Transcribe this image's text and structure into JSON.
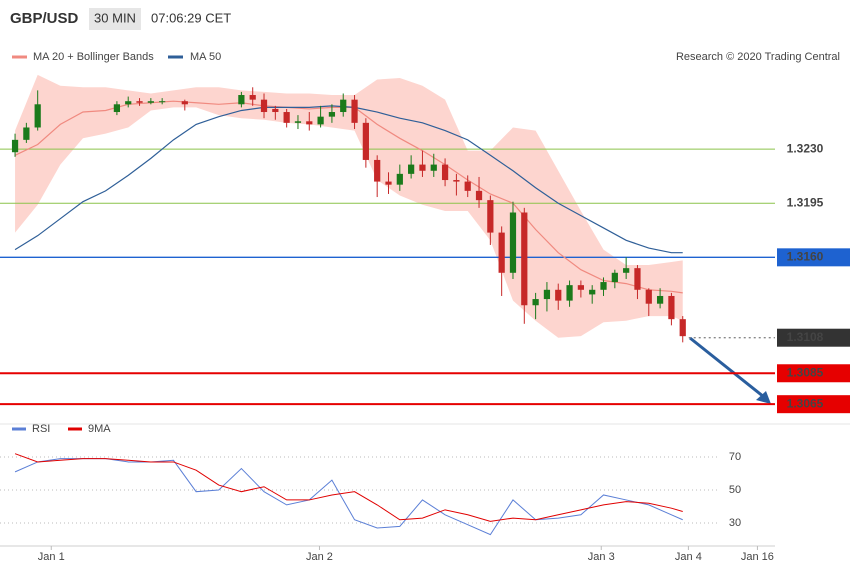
{
  "header": {
    "symbol": "GBP/USD",
    "interval": "30 MIN",
    "time": "07:06:29 CET"
  },
  "chart_data": [
    {
      "type": "candlestick",
      "annotation": "Research © 2020 Trading Central",
      "up_color": "#1b7a1b",
      "down_color": "#c62828",
      "xlim": [
        -1.33,
        66.8
      ],
      "ylim": [
        1.3058,
        1.332
      ],
      "open": [
        1.3228,
        1.3236,
        1.3244,
        null,
        null,
        null,
        null,
        null,
        null,
        1.3254,
        1.3259,
        1.3261,
        1.326,
        1.3261,
        null,
        1.3261,
        null,
        null,
        null,
        null,
        1.3259,
        1.3265,
        1.3262,
        1.3256,
        1.3254,
        1.3247,
        1.3248,
        1.3246,
        1.3251,
        1.3254,
        1.3262,
        1.3247,
        1.3223,
        1.3209,
        1.3207,
        1.3214,
        1.322,
        1.3216,
        1.322,
        1.321,
        1.3209,
        1.3203,
        1.3197,
        1.3176,
        1.315,
        1.3189,
        1.3129,
        1.3133,
        1.3139,
        1.3132,
        1.3142,
        1.3136,
        1.3139,
        1.3144,
        1.315,
        1.3153,
        1.3139,
        1.313,
        1.3135,
        1.312
      ],
      "high": [
        1.324,
        1.3247,
        1.3268,
        null,
        null,
        null,
        null,
        null,
        null,
        1.3261,
        1.3264,
        1.3263,
        1.3263,
        1.3263,
        null,
        1.3262,
        null,
        null,
        null,
        null,
        1.3267,
        1.327,
        1.3266,
        1.3258,
        1.3256,
        1.3252,
        1.3254,
        1.3258,
        1.3259,
        1.3266,
        1.3265,
        1.325,
        1.3226,
        1.3215,
        1.322,
        1.3226,
        1.3229,
        1.3227,
        1.3224,
        1.3214,
        1.3213,
        1.3212,
        1.32,
        1.318,
        1.3196,
        1.3192,
        1.3137,
        1.3144,
        1.3143,
        1.3145,
        1.3145,
        1.3142,
        1.3147,
        1.3152,
        1.316,
        1.3155,
        1.314,
        1.314,
        1.3137,
        1.3122
      ],
      "low": [
        1.3225,
        1.3234,
        1.3242,
        null,
        null,
        null,
        null,
        null,
        null,
        1.3252,
        1.3257,
        1.3258,
        1.3259,
        1.3259,
        null,
        1.3255,
        null,
        null,
        null,
        null,
        1.3257,
        1.3258,
        1.325,
        1.3249,
        1.3244,
        1.3243,
        1.3242,
        1.3244,
        1.3247,
        1.3251,
        1.3243,
        1.3218,
        1.3199,
        1.3201,
        1.3203,
        1.3211,
        1.3212,
        1.3212,
        1.3206,
        1.32,
        1.3199,
        1.3192,
        1.3168,
        1.3135,
        1.3146,
        1.3117,
        1.312,
        1.3125,
        1.3126,
        1.3128,
        1.3134,
        1.313,
        1.3135,
        1.314,
        1.3146,
        1.3133,
        1.3122,
        1.3127,
        1.3116,
        1.3105
      ],
      "close": [
        1.3236,
        1.3244,
        1.3259,
        null,
        null,
        null,
        null,
        null,
        null,
        1.3259,
        1.3261,
        1.326,
        1.3261,
        1.3261,
        null,
        1.3259,
        null,
        null,
        null,
        null,
        1.3265,
        1.3262,
        1.3254,
        1.3254,
        1.3247,
        1.3248,
        1.3246,
        1.3251,
        1.3254,
        1.3262,
        1.3247,
        1.3223,
        1.3209,
        1.3207,
        1.3214,
        1.322,
        1.3216,
        1.322,
        1.321,
        1.3209,
        1.3203,
        1.3197,
        1.3176,
        1.315,
        1.3189,
        1.3129,
        1.3133,
        1.3139,
        1.3132,
        1.3142,
        1.3139,
        1.3139,
        1.3144,
        1.315,
        1.3153,
        1.3139,
        1.313,
        1.3135,
        1.312,
        1.3109
      ],
      "band": {
        "name": "MA 20 + Bollinger Bands",
        "color": "#f08a80",
        "fill": "#fdd5cf",
        "x": [
          0,
          2,
          4,
          6,
          8,
          10,
          12,
          14,
          16,
          18,
          20,
          22,
          24,
          26,
          28,
          30,
          32,
          34,
          36,
          38,
          40,
          42,
          44,
          46,
          48,
          50,
          52,
          54,
          56,
          58,
          59
        ],
        "middle": [
          1.3226,
          1.3233,
          1.3246,
          1.3254,
          1.3255,
          1.3259,
          1.326,
          1.3261,
          1.326,
          1.3259,
          1.326,
          1.3258,
          1.3257,
          1.3256,
          1.3257,
          1.3257,
          1.3246,
          1.3237,
          1.3229,
          1.322,
          1.321,
          1.3201,
          1.3195,
          1.3178,
          1.3163,
          1.3152,
          1.3145,
          1.3143,
          1.3139,
          1.3138,
          1.3137
        ],
        "upper": [
          1.3242,
          1.3278,
          1.3271,
          1.327,
          1.327,
          1.3268,
          1.3266,
          1.3268,
          1.327,
          1.327,
          1.3268,
          1.3267,
          1.3266,
          1.3266,
          1.3265,
          1.3265,
          1.3275,
          1.3276,
          1.3271,
          1.3262,
          1.3229,
          1.3229,
          1.3244,
          1.3242,
          1.3216,
          1.319,
          1.3165,
          1.3155,
          1.3155,
          1.3157,
          1.3158
        ],
        "lower": [
          1.3176,
          1.3194,
          1.322,
          1.3237,
          1.324,
          1.3244,
          1.3255,
          1.3257,
          1.3257,
          1.3252,
          1.325,
          1.3249,
          1.3247,
          1.3246,
          1.3244,
          1.3242,
          1.321,
          1.32,
          1.3194,
          1.319,
          1.319,
          1.3171,
          1.3132,
          1.3119,
          1.3108,
          1.3109,
          1.3118,
          1.3119,
          1.3122,
          1.3122,
          1.3119
        ]
      },
      "series": [
        {
          "name": "MA 50",
          "color": "#2f5f98",
          "x": [
            0,
            2,
            4,
            6,
            8,
            10,
            12,
            14,
            16,
            18,
            20,
            22,
            24,
            26,
            28,
            30,
            32,
            34,
            36,
            38,
            40,
            42,
            44,
            46,
            48,
            50,
            52,
            54,
            56,
            58,
            59
          ],
          "values": [
            1.3165,
            1.3174,
            1.3185,
            1.3196,
            1.3203,
            1.3213,
            1.3224,
            1.3236,
            1.3246,
            1.3251,
            1.3255,
            1.3257,
            1.3257,
            1.3257,
            1.3258,
            1.3257,
            1.3254,
            1.325,
            1.3247,
            1.3242,
            1.3236,
            1.3226,
            1.3216,
            1.3205,
            1.3195,
            1.3187,
            1.3179,
            1.3171,
            1.3166,
            1.3163,
            1.3163
          ]
        }
      ],
      "levels": [
        {
          "value": 1.323,
          "label": "1.3230",
          "color": "#8bc34a",
          "boxed": false,
          "dotted": false
        },
        {
          "value": 1.3195,
          "label": "1.3195",
          "color": "#8bc34a",
          "boxed": false,
          "dotted": false
        },
        {
          "value": 1.316,
          "label": "1.3160",
          "color": "#1e62d0",
          "boxed": true,
          "dotted": false
        },
        {
          "value": 1.3108,
          "label": "1.3108",
          "color": "#333333",
          "boxed": true,
          "dotted": true
        },
        {
          "value": 1.3085,
          "label": "1.3085",
          "color": "#e60000",
          "boxed": true,
          "dotted": false
        },
        {
          "value": 1.3065,
          "label": "1.3065",
          "color": "#e60000",
          "boxed": true,
          "dotted": false
        }
      ]
    },
    {
      "type": "line",
      "xlim": [
        -1.33,
        66.8
      ],
      "ylim": [
        16.7,
        80.3
      ],
      "yticks": [
        70,
        50,
        30
      ],
      "xticks": [
        {
          "value": 3.2,
          "label": "Jan 1"
        },
        {
          "value": 26.9,
          "label": "Jan 2"
        },
        {
          "value": 51.8,
          "label": "Jan 3"
        },
        {
          "value": 59.5,
          "label": "Jan 4"
        },
        {
          "value": 65.6,
          "label": "Jan 16"
        }
      ],
      "series": [
        {
          "name": "RSI",
          "color": "#5b7fd6",
          "x": [
            0,
            2,
            4,
            6,
            8,
            10,
            12,
            14,
            16,
            18,
            20,
            22,
            24,
            26,
            28,
            30,
            32,
            34,
            36,
            38,
            40,
            42,
            44,
            46,
            48,
            50,
            52,
            54,
            56,
            58,
            59
          ],
          "values": [
            61,
            67,
            69,
            69,
            69,
            67,
            67,
            68,
            49,
            50,
            63,
            49,
            41,
            44,
            56,
            32,
            27,
            28,
            44,
            35,
            29,
            23,
            44,
            32,
            33,
            35,
            47,
            44,
            41,
            35,
            32
          ]
        },
        {
          "name": "9MA",
          "color": "#e00000",
          "x": [
            0,
            2,
            4,
            6,
            8,
            10,
            12,
            14,
            16,
            18,
            20,
            22,
            24,
            26,
            28,
            30,
            32,
            34,
            36,
            38,
            40,
            42,
            44,
            46,
            48,
            50,
            52,
            54,
            56,
            58,
            59
          ],
          "values": [
            72,
            67,
            68,
            69,
            69,
            68,
            67,
            67,
            62,
            53,
            49,
            52,
            44,
            44,
            47,
            49,
            41,
            32,
            33,
            38,
            35,
            31,
            33,
            32,
            35,
            38,
            41,
            43,
            42,
            39,
            37
          ]
        }
      ]
    }
  ]
}
